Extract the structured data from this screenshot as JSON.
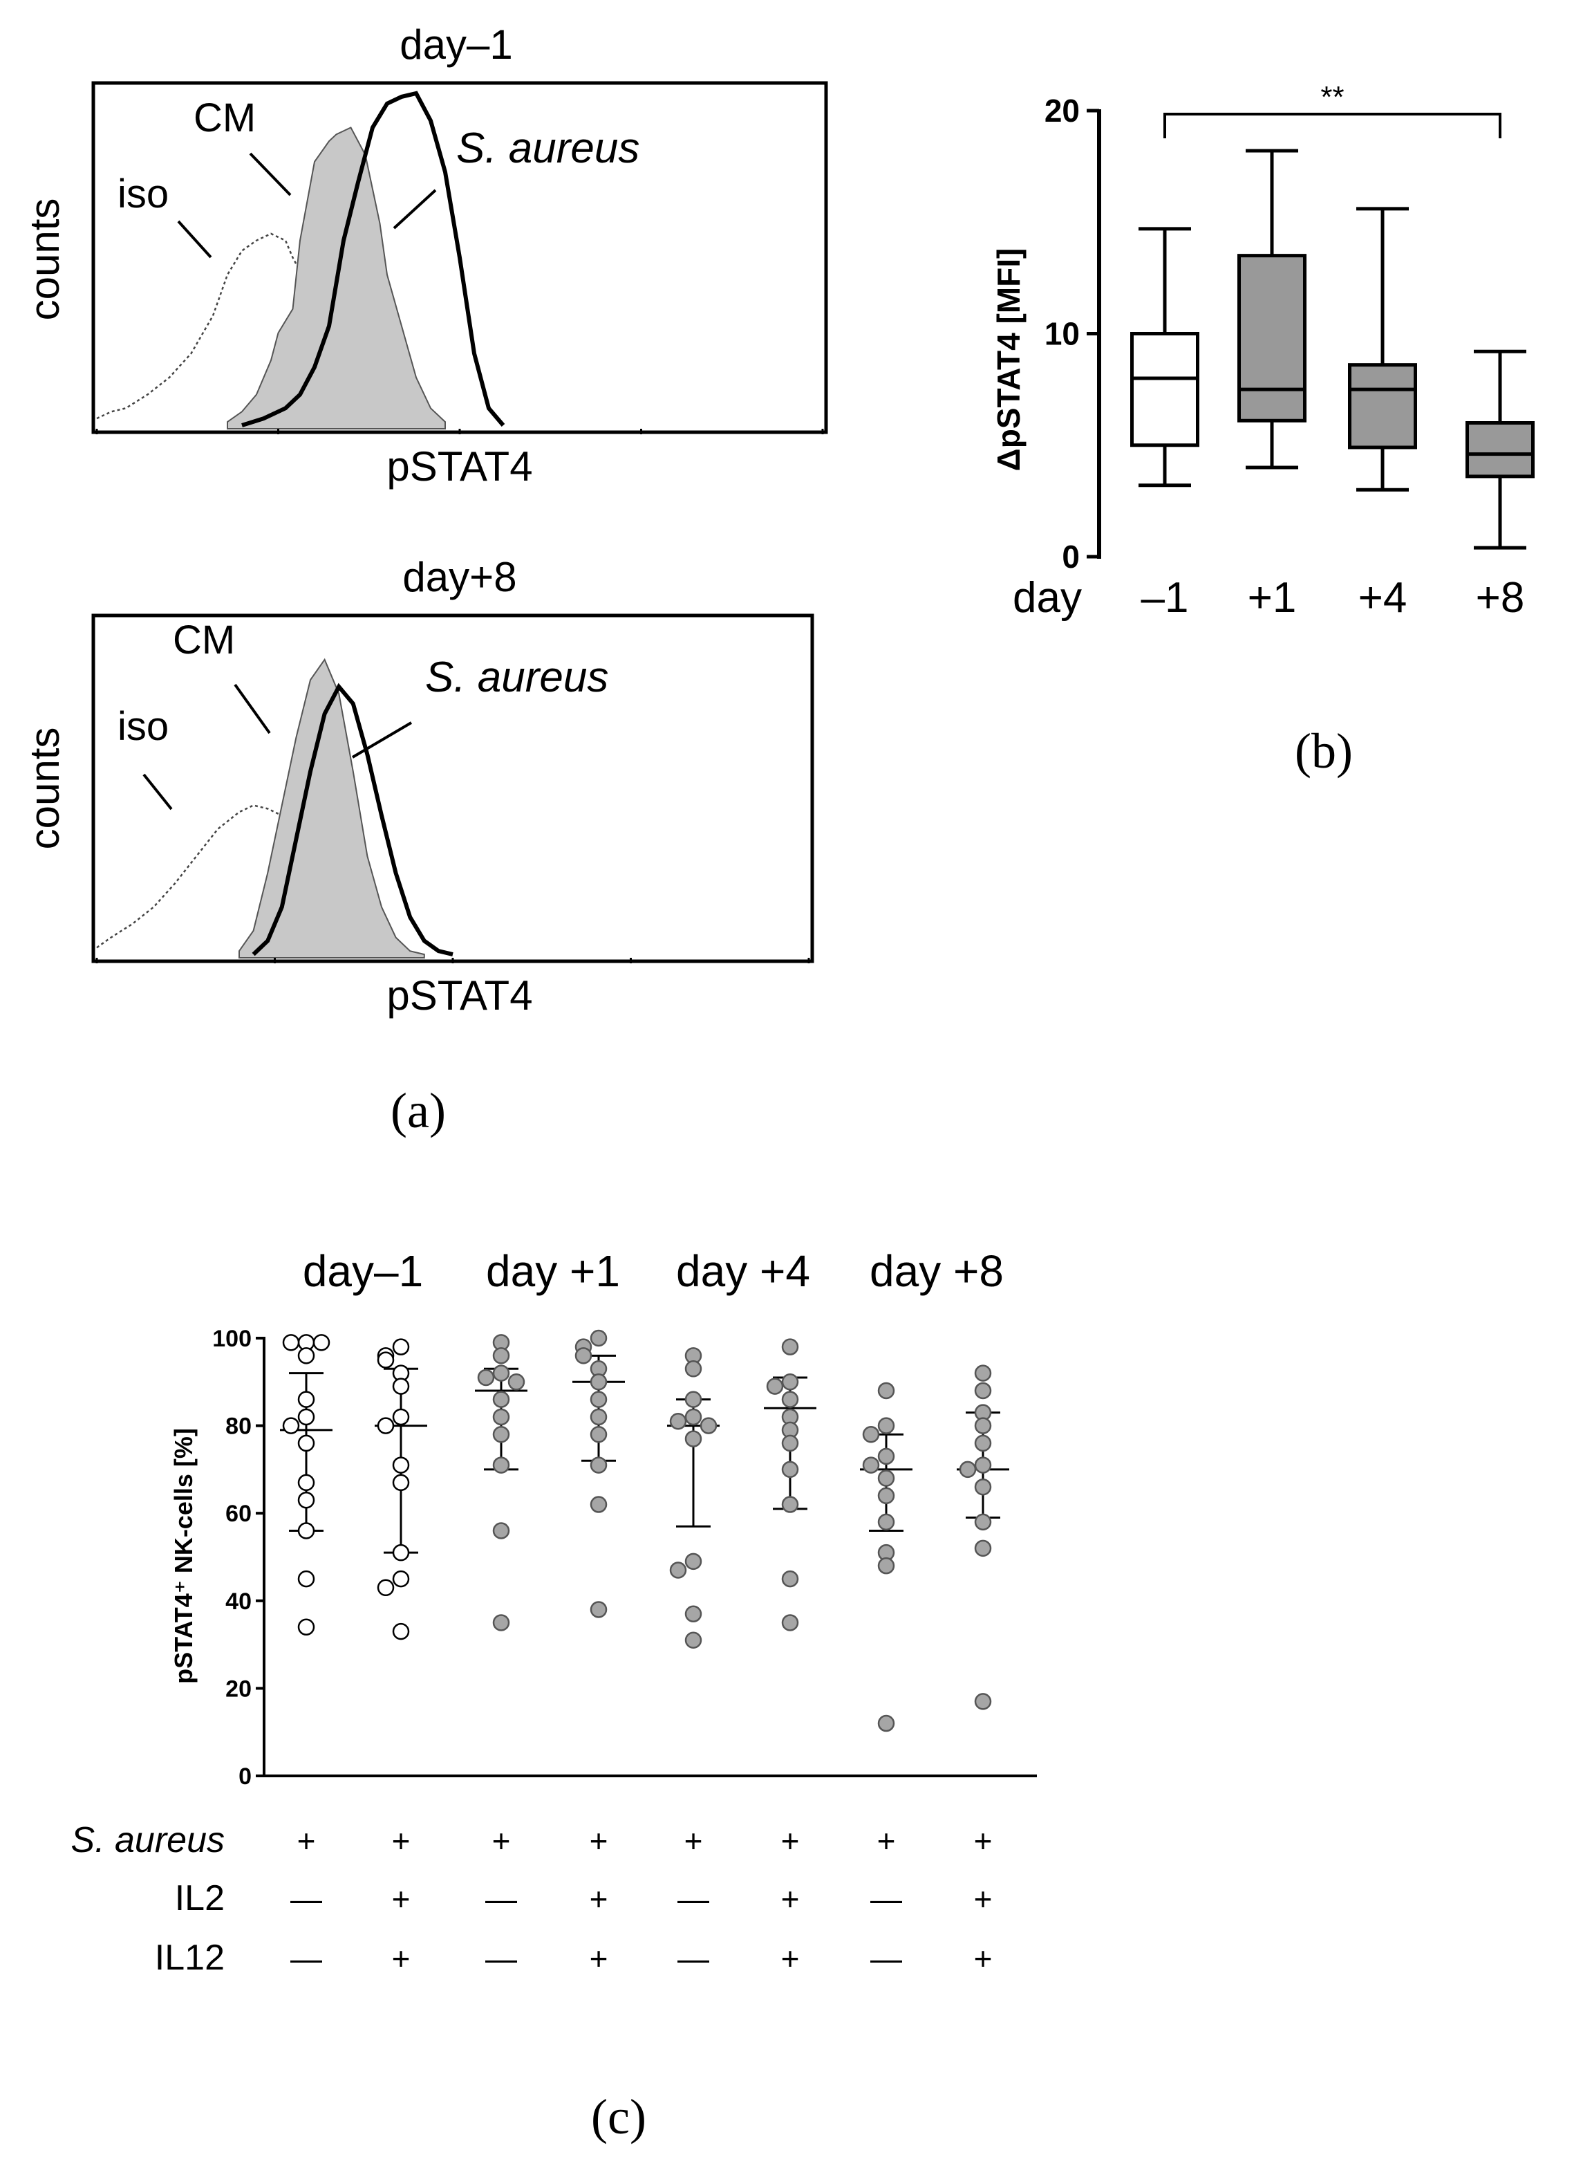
{
  "colors": {
    "ink": "#000000",
    "fill_gray": "#c8c8c8",
    "box_gray": "#999999",
    "dot_gray": "#a6a6a6",
    "dot_open": "#ffffff"
  },
  "chart_data": [
    {
      "id": "a_top",
      "type": "histogram",
      "panel": "(a)",
      "title": "day–1",
      "xlabel": "pSTAT4",
      "ylabel": "counts",
      "labels": {
        "iso": "iso",
        "cm": "CM",
        "sa": "S. aureus"
      },
      "xlim": [
        0,
        1
      ],
      "ylim": [
        0,
        1
      ],
      "series": [
        {
          "name": "iso",
          "style": "dotted",
          "x": [
            0,
            0.02,
            0.04,
            0.07,
            0.1,
            0.13,
            0.16,
            0.18,
            0.2,
            0.22,
            0.24,
            0.26,
            0.27,
            0.29,
            0.31,
            0.33,
            0.35,
            0.37,
            0.39,
            0.41,
            0.43
          ],
          "y": [
            0.03,
            0.05,
            0.06,
            0.1,
            0.15,
            0.22,
            0.33,
            0.45,
            0.52,
            0.55,
            0.57,
            0.55,
            0.5,
            0.42,
            0.33,
            0.25,
            0.18,
            0.12,
            0.08,
            0.06,
            0.05
          ]
        },
        {
          "name": "CM",
          "style": "filled",
          "x": [
            0.18,
            0.2,
            0.22,
            0.24,
            0.25,
            0.27,
            0.28,
            0.3,
            0.32,
            0.33,
            0.35,
            0.37,
            0.38,
            0.39,
            0.4,
            0.42,
            0.44,
            0.46,
            0.48
          ],
          "y": [
            0.02,
            0.05,
            0.1,
            0.2,
            0.28,
            0.35,
            0.55,
            0.78,
            0.84,
            0.86,
            0.88,
            0.8,
            0.7,
            0.6,
            0.45,
            0.3,
            0.15,
            0.06,
            0.02
          ]
        },
        {
          "name": "S. aureus",
          "style": "thick-line",
          "x": [
            0.2,
            0.23,
            0.26,
            0.28,
            0.3,
            0.32,
            0.34,
            0.36,
            0.38,
            0.4,
            0.42,
            0.44,
            0.46,
            0.48,
            0.5,
            0.52,
            0.54,
            0.56
          ],
          "y": [
            0.01,
            0.03,
            0.06,
            0.1,
            0.18,
            0.3,
            0.55,
            0.72,
            0.88,
            0.95,
            0.97,
            0.98,
            0.9,
            0.75,
            0.5,
            0.22,
            0.06,
            0.01
          ]
        }
      ]
    },
    {
      "id": "a_bottom",
      "type": "histogram",
      "panel": "(a)",
      "title": "day+8",
      "xlabel": "pSTAT4",
      "ylabel": "counts",
      "labels": {
        "iso": "iso",
        "cm": "CM",
        "sa": "S. aureus"
      },
      "xlim": [
        0,
        1
      ],
      "ylim": [
        0,
        1
      ],
      "series": [
        {
          "name": "iso",
          "style": "dotted",
          "x": [
            0,
            0.02,
            0.05,
            0.08,
            0.11,
            0.14,
            0.17,
            0.2,
            0.22,
            0.24,
            0.26,
            0.28,
            0.3,
            0.32,
            0.34,
            0.36,
            0.38,
            0.4,
            0.42
          ],
          "y": [
            0.03,
            0.06,
            0.1,
            0.15,
            0.22,
            0.3,
            0.38,
            0.43,
            0.45,
            0.44,
            0.42,
            0.36,
            0.28,
            0.2,
            0.14,
            0.1,
            0.07,
            0.05,
            0.03
          ]
        },
        {
          "name": "CM",
          "style": "filled",
          "x": [
            0.2,
            0.22,
            0.24,
            0.26,
            0.28,
            0.3,
            0.32,
            0.34,
            0.36,
            0.38,
            0.4,
            0.42,
            0.44,
            0.46
          ],
          "y": [
            0.02,
            0.08,
            0.25,
            0.45,
            0.65,
            0.82,
            0.88,
            0.78,
            0.55,
            0.3,
            0.15,
            0.06,
            0.02,
            0.01
          ]
        },
        {
          "name": "S. aureus",
          "style": "thick-line",
          "x": [
            0.22,
            0.24,
            0.26,
            0.28,
            0.3,
            0.32,
            0.34,
            0.36,
            0.38,
            0.4,
            0.42,
            0.44,
            0.46,
            0.48,
            0.5
          ],
          "y": [
            0.01,
            0.05,
            0.15,
            0.35,
            0.55,
            0.72,
            0.8,
            0.75,
            0.6,
            0.42,
            0.25,
            0.12,
            0.05,
            0.02,
            0.01
          ]
        }
      ]
    },
    {
      "id": "b",
      "type": "box",
      "panel": "(b)",
      "ylabel": "ΔpSTAT4 [MFI]",
      "xlabel_prefix": "day",
      "categories": [
        "–1",
        "+1",
        "+4",
        "+8"
      ],
      "ylim": [
        0,
        20
      ],
      "yticks": [
        "0",
        "10",
        "20"
      ],
      "significance": "**",
      "boxes": [
        {
          "category": "–1",
          "min": 3.2,
          "q1": 5.0,
          "median": 8.0,
          "q3": 10.0,
          "max": 14.7,
          "fill": "white"
        },
        {
          "category": "+1",
          "min": 4.0,
          "q1": 6.1,
          "median": 7.5,
          "q3": 13.5,
          "max": 18.2,
          "fill": "gray"
        },
        {
          "category": "+4",
          "min": 3.0,
          "q1": 4.9,
          "median": 7.5,
          "q3": 8.6,
          "max": 15.6,
          "fill": "gray"
        },
        {
          "category": "+8",
          "min": 0.4,
          "q1": 3.6,
          "median": 4.6,
          "q3": 6.0,
          "max": 9.2,
          "fill": "gray"
        }
      ]
    },
    {
      "id": "c",
      "type": "scatter",
      "panel": "(c)",
      "ylabel": "pSTAT4⁺ NK-cells [%]",
      "ylim": [
        0,
        100
      ],
      "yticks": [
        "0",
        "20",
        "40",
        "60",
        "80",
        "100"
      ],
      "day_labels": [
        "day–1",
        "day +1",
        "day +4",
        "day +8"
      ],
      "row_labels": [
        "S. aureus",
        "IL2",
        "IL12"
      ],
      "conditions": [
        {
          "sa": "+",
          "il2": "—",
          "il12": "—",
          "mean": 79,
          "sd_low": 56,
          "sd_high": 92,
          "filled": false,
          "values": [
            99,
            99,
            99,
            96,
            86,
            82,
            80,
            76,
            67,
            63,
            56,
            45,
            34
          ]
        },
        {
          "sa": "+",
          "il2": "+",
          "il12": "+",
          "mean": 80,
          "sd_low": 51,
          "sd_high": 93,
          "filled": false,
          "values": [
            98,
            96,
            95,
            92,
            89,
            82,
            80,
            71,
            67,
            51,
            45,
            43,
            33
          ]
        },
        {
          "sa": "+",
          "il2": "—",
          "il12": "—",
          "mean": 88,
          "sd_low": 70,
          "sd_high": 93,
          "filled": true,
          "values": [
            99,
            96,
            92,
            91,
            90,
            86,
            82,
            78,
            71,
            56,
            35
          ]
        },
        {
          "sa": "+",
          "il2": "+",
          "il12": "+",
          "mean": 90,
          "sd_low": 72,
          "sd_high": 96,
          "filled": true,
          "values": [
            100,
            98,
            96,
            93,
            90,
            86,
            82,
            78,
            71,
            62,
            38
          ]
        },
        {
          "sa": "+",
          "il2": "—",
          "il12": "—",
          "mean": 80,
          "sd_low": 57,
          "sd_high": 86,
          "filled": true,
          "values": [
            96,
            93,
            86,
            82,
            81,
            80,
            77,
            49,
            47,
            37,
            31
          ]
        },
        {
          "sa": "+",
          "il2": "+",
          "il12": "+",
          "mean": 84,
          "sd_low": 61,
          "sd_high": 91,
          "filled": true,
          "values": [
            98,
            90,
            89,
            86,
            82,
            79,
            76,
            70,
            62,
            45,
            35
          ]
        },
        {
          "sa": "+",
          "il2": "—",
          "il12": "—",
          "mean": 70,
          "sd_low": 56,
          "sd_high": 78,
          "filled": true,
          "values": [
            88,
            80,
            78,
            73,
            71,
            68,
            64,
            58,
            51,
            48,
            12
          ]
        },
        {
          "sa": "+",
          "il2": "+",
          "il12": "+",
          "mean": 70,
          "sd_low": 59,
          "sd_high": 83,
          "filled": true,
          "values": [
            92,
            88,
            83,
            80,
            76,
            71,
            70,
            66,
            58,
            52,
            17
          ]
        }
      ]
    }
  ],
  "panel_labels": {
    "a": "(a)",
    "b": "(b)",
    "c": "(c)"
  }
}
